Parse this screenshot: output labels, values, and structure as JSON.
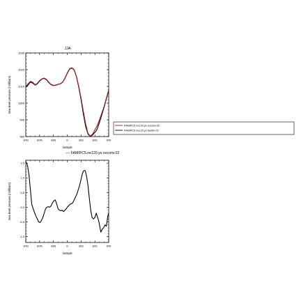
{
  "chart_data": [
    {
      "type": "line",
      "title": "JJA",
      "xlabel": "latitude",
      "ylabel": "Sea-level pressure (millibars)",
      "xlim": [
        90,
        -90
      ],
      "ylim": [
        980,
        1030
      ],
      "x_ticks": [
        90,
        60,
        30,
        0,
        -30,
        -60,
        -90
      ],
      "x_tick_labels": [
        "90N",
        "60N",
        "30N",
        "0",
        "30S",
        "60S",
        "90S"
      ],
      "y_ticks": [
        980,
        990,
        1000,
        1010,
        1020,
        1030
      ],
      "y_tick_labels": [
        "980",
        "990",
        "1000",
        "1010",
        "1020",
        "1030"
      ],
      "grid": false,
      "legend_position": "right",
      "series": [
        {
          "name": "FAMIPC5.ne120.ys.noconv.02",
          "color": "#a01818",
          "x": [
            90,
            85,
            80,
            75,
            70,
            65,
            60,
            55,
            50,
            45,
            40,
            35,
            30,
            25,
            20,
            15,
            10,
            5,
            0,
            -5,
            -10,
            -15,
            -20,
            -25,
            -30,
            -35,
            -40,
            -45,
            -50,
            -55,
            -60,
            -63,
            -65,
            -70,
            -75,
            -80,
            -85,
            -90
          ],
          "values": [
            1010,
            1011.5,
            1013,
            1012.5,
            1011,
            1011.8,
            1013.5,
            1014.5,
            1015,
            1014.2,
            1012.5,
            1011.2,
            1010.6,
            1010.8,
            1011.3,
            1011.6,
            1012.6,
            1015,
            1018,
            1020.5,
            1021.2,
            1020,
            1016,
            1010,
            1003,
            995,
            987.5,
            982,
            980.2,
            981.5,
            984,
            985.5,
            986.5,
            990,
            994,
            998,
            1003,
            1008
          ]
        },
        {
          "name": "FAMIPC5.ne120.ys.tau5m.02",
          "color": "#000000",
          "x": [
            90,
            85,
            80,
            75,
            70,
            65,
            60,
            55,
            50,
            45,
            40,
            35,
            30,
            25,
            20,
            15,
            10,
            5,
            0,
            -5,
            -10,
            -15,
            -20,
            -25,
            -30,
            -35,
            -40,
            -45,
            -50,
            -55,
            -60,
            -63,
            -65,
            -70,
            -75,
            -80,
            -85,
            -90
          ],
          "values": [
            1009.5,
            1010.8,
            1012.6,
            1012,
            1010.8,
            1011.5,
            1013.2,
            1014.4,
            1014.8,
            1014,
            1012.3,
            1011,
            1010.5,
            1010.7,
            1011.2,
            1011.5,
            1012.5,
            1014.8,
            1017.8,
            1020.3,
            1021,
            1019.8,
            1015.8,
            1009.5,
            1002,
            993.5,
            986,
            981.5,
            980,
            981,
            982.5,
            983.5,
            984.5,
            988.5,
            993,
            997.5,
            1002.5,
            1007.5
          ]
        }
      ]
    },
    {
      "type": "line",
      "title": "",
      "subtitle": "— FAMIPC5.ne120.ys.noconv.02",
      "xlabel": "latitude",
      "ylabel": "Sea-level pressure (millibars)",
      "xlim": [
        90,
        -90
      ],
      "ylim": [
        -1.2,
        1.6
      ],
      "x_ticks": [
        90,
        60,
        30,
        0,
        -30,
        -60,
        -90
      ],
      "x_tick_labels": [
        "90N",
        "60N",
        "30N",
        "0",
        "30S",
        "60S",
        "90S"
      ],
      "y_ticks": [
        -1.0,
        -0.5,
        0.0,
        0.5,
        1.0,
        1.5
      ],
      "y_tick_labels": [
        "-1.0",
        "-0.5",
        "0.0",
        "0.5",
        "1.0",
        "1.5"
      ],
      "grid": false,
      "series": [
        {
          "color": "#000000",
          "x": [
            90,
            88,
            86,
            83,
            80,
            77,
            74,
            71,
            68,
            65,
            62,
            59,
            56,
            53,
            50,
            47,
            44,
            41,
            38,
            35,
            32,
            29,
            26,
            23,
            20,
            17,
            14,
            11,
            8,
            5,
            2,
            0,
            -3,
            -6,
            -9,
            -12,
            -15,
            -18,
            -21,
            -24,
            -27,
            -30,
            -33,
            -36,
            -39,
            -42,
            -45,
            -48,
            -51,
            -54,
            -57,
            -60,
            -63,
            -65,
            -68,
            -70,
            -73,
            -76,
            -79,
            -82,
            -85,
            -88,
            -90
          ],
          "values": [
            1.55,
            1.5,
            1.4,
            1.1,
            0.6,
            0.1,
            -0.05,
            -0.18,
            -0.3,
            -0.4,
            -0.5,
            -0.52,
            -0.45,
            -0.35,
            -0.2,
            -0.05,
            0.0,
            0.02,
            0.0,
            0.05,
            0.15,
            0.22,
            0.25,
            0.12,
            -0.05,
            -0.1,
            -0.12,
            -0.1,
            -0.15,
            -0.1,
            -0.05,
            0.0,
            0.05,
            0.1,
            0.12,
            0.15,
            0.25,
            0.35,
            0.45,
            0.6,
            0.75,
            0.95,
            1.15,
            1.25,
            1.25,
            1.05,
            0.75,
            0.3,
            -0.1,
            -0.35,
            -0.4,
            -0.35,
            -0.2,
            -0.3,
            -0.45,
            -0.6,
            -0.85,
            -0.75,
            -0.7,
            -0.6,
            -0.65,
            -0.3,
            -0.2
          ]
        }
      ]
    }
  ]
}
